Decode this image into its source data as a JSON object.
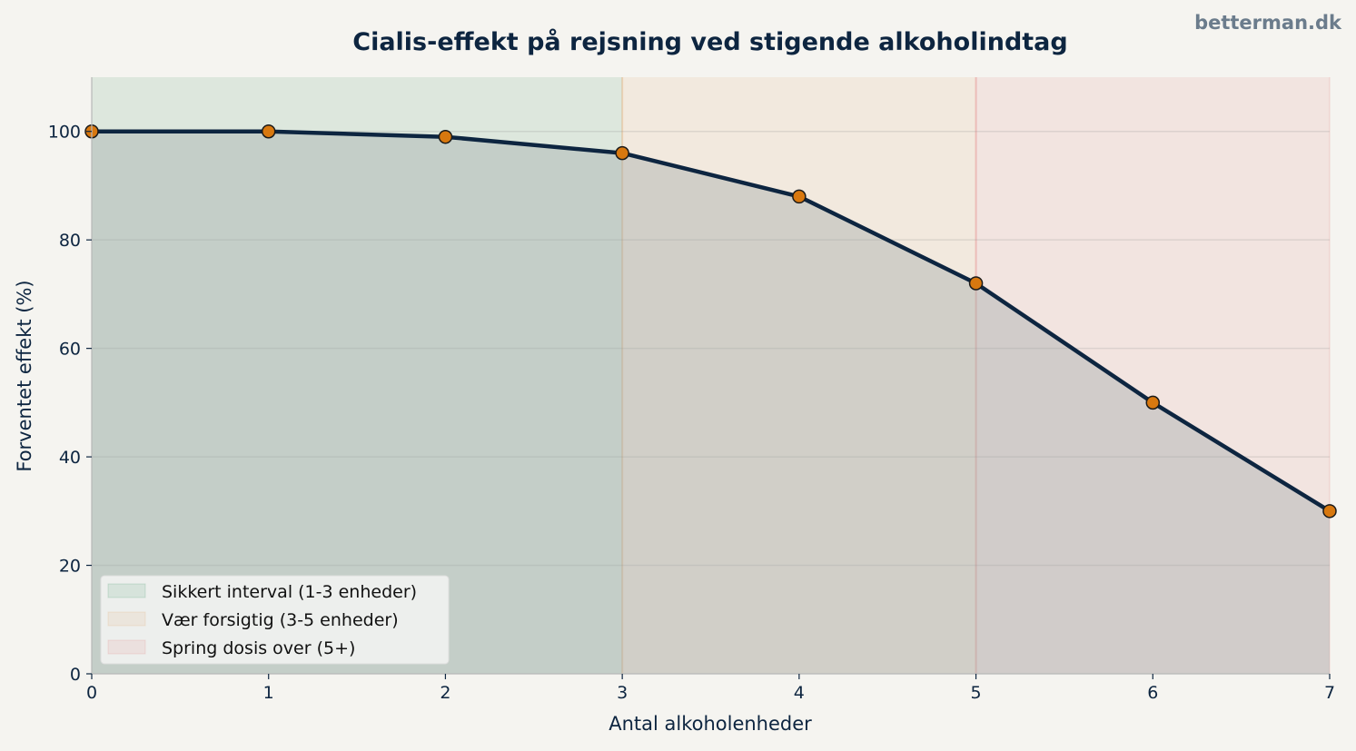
{
  "watermark": "betterman.dk",
  "chart_data": {
    "type": "line",
    "title": "Cialis-effekt på rejsning ved stigende alkoholindtag",
    "xlabel": "Antal alkoholenheder",
    "ylabel": "Forventet effekt (%)",
    "x": [
      0,
      1,
      2,
      3,
      4,
      5,
      6,
      7
    ],
    "y": [
      100,
      100,
      99,
      96,
      88,
      72,
      50,
      30
    ],
    "xlim": [
      0,
      7
    ],
    "ylim": [
      0,
      110
    ],
    "xticks": [
      "0",
      "1",
      "2",
      "3",
      "4",
      "5",
      "6",
      "7"
    ],
    "yticks": [
      "0",
      "20",
      "40",
      "60",
      "80",
      "100"
    ],
    "grid": "horizontal",
    "legend_position": "lower-left",
    "zones": [
      {
        "label": "Sikkert interval (1-3 enheder)",
        "from": 0,
        "to": 3,
        "color": "#2e8b57"
      },
      {
        "label": "Vær forsigtig (3-5 enheder)",
        "from": 3,
        "to": 5,
        "color": "#e0a060"
      },
      {
        "label": "Spring dosis over (5+)",
        "from": 5,
        "to": 7,
        "color": "#e07070"
      }
    ],
    "colors": {
      "line": "#0d2540",
      "marker": "#d8780f",
      "area": "#9aa6a6",
      "text": "#0d2540",
      "watermark": "#6b7c8c"
    }
  }
}
